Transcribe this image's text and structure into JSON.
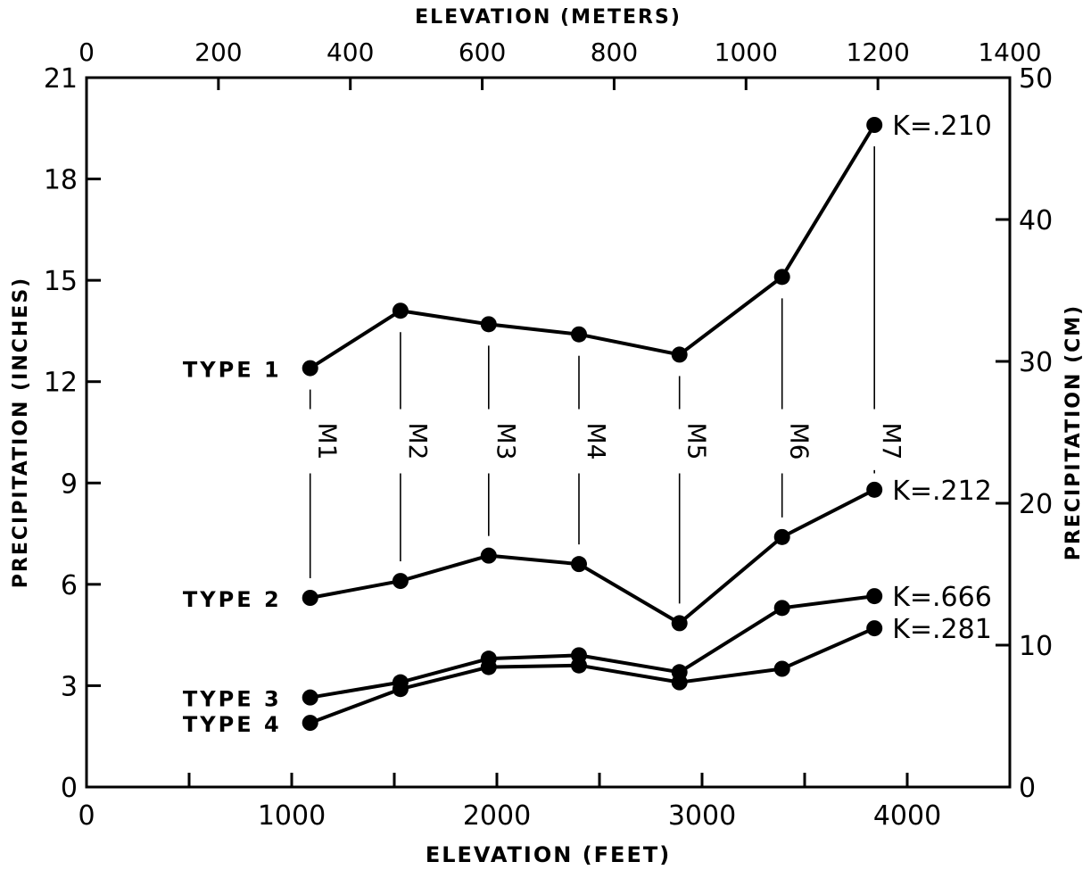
{
  "chart_data": {
    "type": "line",
    "x_label": "Elevation (feet)",
    "x_top_label": "Elevation (meters)",
    "y_label": "Precipitation (inches)",
    "y_right_label": "Precipitation (cm)",
    "x_range": [
      0,
      4500
    ],
    "y_range": [
      0,
      21
    ],
    "x_top_range": [
      0,
      1400
    ],
    "y_right_range": [
      0,
      50
    ],
    "x_ticks": [
      0,
      1000,
      2000,
      3000,
      4000
    ],
    "x_minor_ticks": [
      500,
      1500,
      2500,
      3500
    ],
    "y_ticks": [
      0,
      3,
      6,
      9,
      12,
      15,
      18,
      21
    ],
    "x_top_ticks": [
      0,
      200,
      400,
      600,
      800,
      1000,
      1200,
      1400
    ],
    "y_right_ticks": [
      0,
      10,
      20,
      30,
      40,
      50
    ],
    "x_tick_labels": [
      "0",
      "1000",
      "2000",
      "3000",
      "4000"
    ],
    "y_tick_labels": [
      "0",
      "3",
      "6",
      "9",
      "12",
      "15",
      "18",
      "21"
    ],
    "x_top_tick_labels": [
      "0",
      "200",
      "400",
      "600",
      "800",
      "1000",
      "1200",
      "1400"
    ],
    "y_right_tick_labels": [
      "0",
      "10",
      "20",
      "30",
      "40",
      "50"
    ],
    "grid": false,
    "sites": [
      {
        "label": "M1",
        "x": 1090
      },
      {
        "label": "M2",
        "x": 1530
      },
      {
        "label": "M3",
        "x": 1960
      },
      {
        "label": "M4",
        "x": 2400
      },
      {
        "label": "M5",
        "x": 2890
      },
      {
        "label": "M6",
        "x": 3390
      },
      {
        "label": "M7",
        "x": 3840
      }
    ],
    "series": [
      {
        "name": "Type 1",
        "k": "K=.210",
        "x": [
          1090,
          1530,
          1960,
          2400,
          2890,
          3390,
          3840
        ],
        "y": [
          12.4,
          14.1,
          13.7,
          13.4,
          12.8,
          15.1,
          19.6
        ]
      },
      {
        "name": "Type 2",
        "k": "K=.212",
        "x": [
          1090,
          1530,
          1960,
          2400,
          2890,
          3390,
          3840
        ],
        "y": [
          5.6,
          6.1,
          6.85,
          6.6,
          4.85,
          7.4,
          8.8
        ]
      },
      {
        "name": "Type 3",
        "k": "K=.666",
        "x": [
          1090,
          1530,
          1960,
          2400,
          2890,
          3390,
          3840
        ],
        "y": [
          2.65,
          3.1,
          3.8,
          3.9,
          3.4,
          5.3,
          5.65
        ]
      },
      {
        "name": "Type 4",
        "k": "K=.281",
        "x": [
          1090,
          1530,
          1960,
          2400,
          2890,
          3390,
          3840
        ],
        "y": [
          1.9,
          2.9,
          3.55,
          3.6,
          3.1,
          3.5,
          4.7
        ]
      }
    ]
  }
}
